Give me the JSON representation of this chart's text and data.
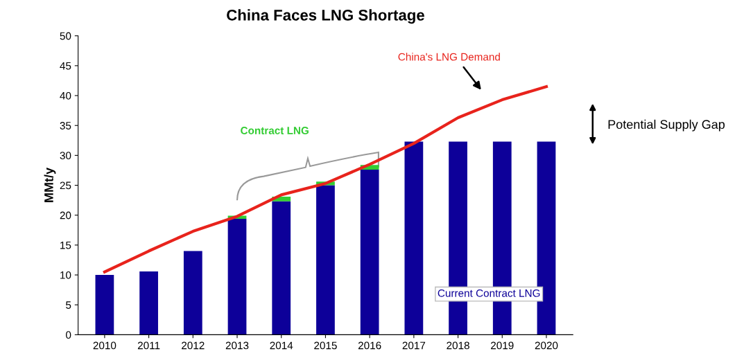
{
  "chart_data": {
    "type": "bar",
    "title": "China Faces LNG Shortage",
    "ylabel": "MMt/y",
    "stacked": true,
    "categories": [
      "2010",
      "2011",
      "2012",
      "2013",
      "2014",
      "2015",
      "2016",
      "2017",
      "2018",
      "2019",
      "2020"
    ],
    "series": [
      {
        "name": "Current Contract LNG",
        "color": "#0d0099",
        "values": [
          10.0,
          10.6,
          14.0,
          19.4,
          22.3,
          25.0,
          27.6,
          32.3,
          32.3,
          32.3,
          32.3
        ]
      },
      {
        "name": "Contract LNG",
        "color": "#33cc33",
        "values": [
          null,
          null,
          null,
          0.5,
          0.8,
          0.6,
          0.8,
          null,
          null,
          null,
          null
        ]
      },
      {
        "name": "China's LNG Demand",
        "type": "line",
        "color": "#e8231c",
        "values": [
          10.5,
          14.0,
          17.3,
          19.8,
          23.4,
          25.3,
          28.5,
          32.0,
          36.3,
          39.3,
          41.5
        ]
      }
    ],
    "ylim": [
      0,
      50
    ],
    "yticks": [
      0,
      5,
      10,
      15,
      20,
      25,
      30,
      35,
      40,
      45,
      50
    ],
    "annotations": [
      "Potential Supply Gap"
    ],
    "grid": false,
    "legend": false
  }
}
